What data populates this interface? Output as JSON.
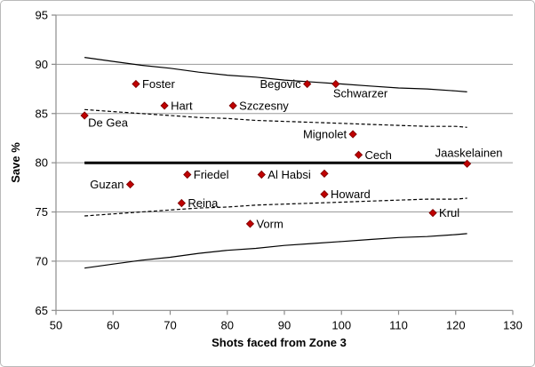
{
  "chart_data": {
    "type": "scatter",
    "title": "",
    "xlabel": "Shots faced from Zone 3",
    "ylabel": "Save %",
    "xlim": [
      50,
      130
    ],
    "ylim": [
      65,
      95
    ],
    "xticks": [
      50,
      60,
      70,
      80,
      90,
      100,
      110,
      120,
      130
    ],
    "yticks": [
      65,
      70,
      75,
      80,
      85,
      90,
      95
    ],
    "grid": "horizontal-gray",
    "legend": "none",
    "marker": {
      "shape": "diamond",
      "fill": "#C00000",
      "border": "#7F0000",
      "size": 8
    },
    "points": [
      {
        "name": "De Gea",
        "x": 55,
        "y": 84.8,
        "label_pos": "below-right"
      },
      {
        "name": "Guzan",
        "x": 63,
        "y": 77.8,
        "label_pos": "left"
      },
      {
        "name": "Foster",
        "x": 64,
        "y": 88.0,
        "label_pos": "right"
      },
      {
        "name": "Hart",
        "x": 69,
        "y": 85.8,
        "label_pos": "right"
      },
      {
        "name": "Reina",
        "x": 72,
        "y": 75.9,
        "label_pos": "right"
      },
      {
        "name": "Friedel",
        "x": 73,
        "y": 78.8,
        "label_pos": "right"
      },
      {
        "name": "Szczesny",
        "x": 81,
        "y": 85.8,
        "label_pos": "right"
      },
      {
        "name": "Vorm",
        "x": 84,
        "y": 73.8,
        "label_pos": "right"
      },
      {
        "name": "Al Habsi",
        "x": 86,
        "y": 78.8,
        "label_pos": "right"
      },
      {
        "name": "Begovic",
        "x": 94,
        "y": 88.0,
        "label_pos": "left"
      },
      {
        "name": "",
        "x": 97,
        "y": 78.9,
        "label_pos": "none"
      },
      {
        "name": "Howard",
        "x": 97,
        "y": 76.8,
        "label_pos": "right"
      },
      {
        "name": "Schwarzer",
        "x": 99,
        "y": 88.0,
        "label_pos": "below"
      },
      {
        "name": "Mignolet",
        "x": 102,
        "y": 82.9,
        "label_pos": "left"
      },
      {
        "name": "Cech",
        "x": 103,
        "y": 80.8,
        "label_pos": "right"
      },
      {
        "name": "Krul",
        "x": 116,
        "y": 74.9,
        "label_pos": "right"
      },
      {
        "name": "Jaaskelainen",
        "x": 122,
        "y": 79.9,
        "label_pos": "above"
      }
    ],
    "reference_lines": [
      {
        "id": "center",
        "style": "solid-thick",
        "color": "#000000",
        "points": [
          [
            55,
            80
          ],
          [
            122.2,
            80
          ]
        ]
      },
      {
        "id": "upper-solid",
        "style": "solid",
        "color": "#000000",
        "points": [
          [
            55,
            90.7
          ],
          [
            60,
            90.3
          ],
          [
            65,
            89.9
          ],
          [
            70,
            89.6
          ],
          [
            75,
            89.2
          ],
          [
            80,
            88.9
          ],
          [
            85,
            88.7
          ],
          [
            90,
            88.4
          ],
          [
            95,
            88.2
          ],
          [
            100,
            88.0
          ],
          [
            105,
            87.8
          ],
          [
            110,
            87.6
          ],
          [
            115,
            87.5
          ],
          [
            120,
            87.3
          ],
          [
            122,
            87.2
          ]
        ]
      },
      {
        "id": "lower-solid",
        "style": "solid",
        "color": "#000000",
        "points": [
          [
            55,
            69.3
          ],
          [
            60,
            69.7
          ],
          [
            65,
            70.1
          ],
          [
            70,
            70.4
          ],
          [
            75,
            70.8
          ],
          [
            80,
            71.1
          ],
          [
            85,
            71.3
          ],
          [
            90,
            71.6
          ],
          [
            95,
            71.8
          ],
          [
            100,
            72.0
          ],
          [
            105,
            72.2
          ],
          [
            110,
            72.4
          ],
          [
            115,
            72.5
          ],
          [
            120,
            72.7
          ],
          [
            122,
            72.8
          ]
        ]
      },
      {
        "id": "upper-dashed",
        "style": "dashed",
        "color": "#000000",
        "points": [
          [
            55,
            85.4
          ],
          [
            60,
            85.2
          ],
          [
            65,
            85.0
          ],
          [
            70,
            84.8
          ],
          [
            75,
            84.6
          ],
          [
            80,
            84.5
          ],
          [
            85,
            84.3
          ],
          [
            90,
            84.2
          ],
          [
            95,
            84.1
          ],
          [
            100,
            84.0
          ],
          [
            105,
            83.9
          ],
          [
            110,
            83.8
          ],
          [
            115,
            83.7
          ],
          [
            120,
            83.7
          ],
          [
            122,
            83.6
          ]
        ]
      },
      {
        "id": "lower-dashed",
        "style": "dashed",
        "color": "#000000",
        "points": [
          [
            55,
            74.6
          ],
          [
            60,
            74.8
          ],
          [
            65,
            75.0
          ],
          [
            70,
            75.2
          ],
          [
            75,
            75.4
          ],
          [
            80,
            75.5
          ],
          [
            85,
            75.7
          ],
          [
            90,
            75.8
          ],
          [
            95,
            75.9
          ],
          [
            100,
            76.0
          ],
          [
            105,
            76.1
          ],
          [
            110,
            76.2
          ],
          [
            115,
            76.3
          ],
          [
            120,
            76.3
          ],
          [
            122,
            76.4
          ]
        ]
      }
    ]
  },
  "colors": {
    "background": "#FFFFFF",
    "frame_border": "#B9B9B9",
    "gridline": "#9A9A9A",
    "axis": "#8C8C8C",
    "text": "#000000",
    "marker_fill": "#C00000",
    "marker_border": "#7F0000"
  }
}
